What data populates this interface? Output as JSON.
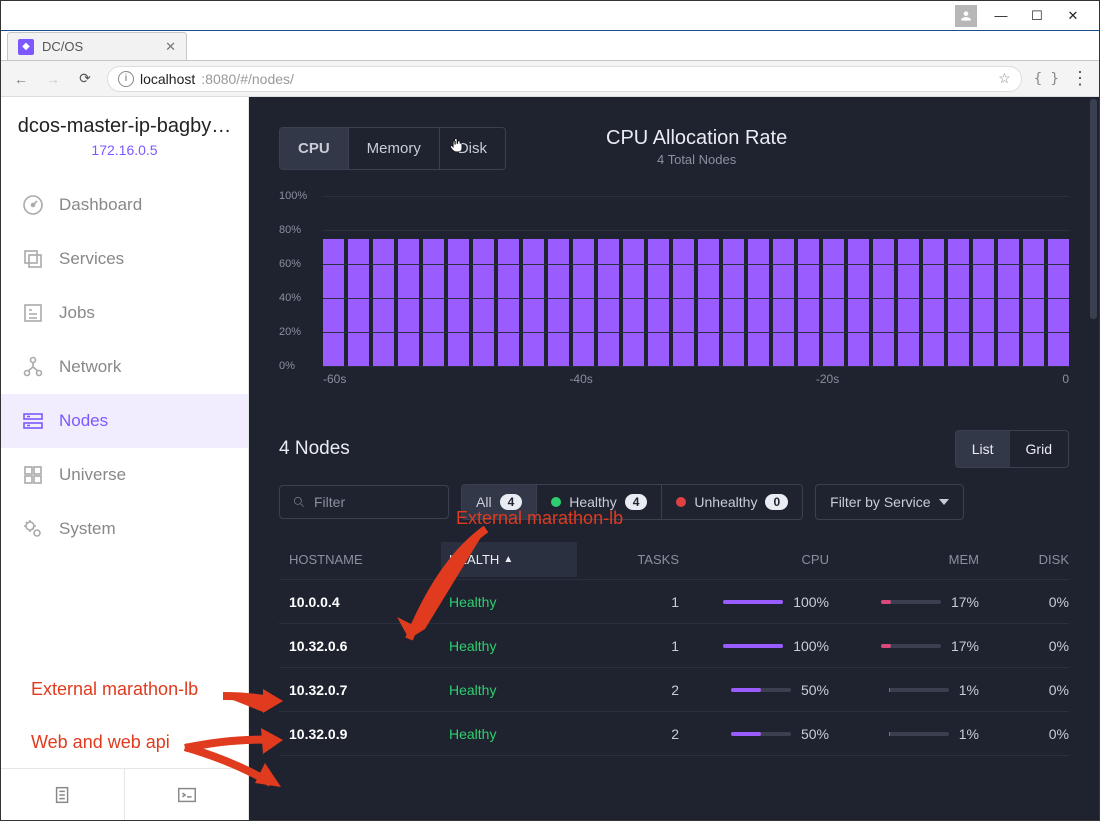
{
  "window": {
    "tab_title": "DC/OS",
    "url_host": "localhost",
    "url_rest": ":8080/#/nodes/"
  },
  "sidebar": {
    "cluster_name": "dcos-master-ip-bagby…",
    "cluster_ip": "172.16.0.5",
    "items": [
      {
        "label": "Dashboard"
      },
      {
        "label": "Services"
      },
      {
        "label": "Jobs"
      },
      {
        "label": "Network"
      },
      {
        "label": "Nodes"
      },
      {
        "label": "Universe"
      },
      {
        "label": "System"
      }
    ]
  },
  "tabs": {
    "cpu": "CPU",
    "memory": "Memory",
    "disk": "Disk"
  },
  "chart": {
    "title": "CPU Allocation Rate",
    "subtitle": "4 Total Nodes",
    "ylabels": [
      "100%",
      "80%",
      "60%",
      "40%",
      "20%",
      "0%"
    ],
    "xlabels": [
      "-60s",
      "-40s",
      "-20s",
      "0"
    ],
    "bar_pct": 75,
    "bar_count": 30,
    "bar_color": "#9b5cff",
    "grid_color": "#2b3040"
  },
  "nodes": {
    "heading": "4 Nodes",
    "view_list": "List",
    "view_grid": "Grid",
    "filter_placeholder": "Filter",
    "health_filters": {
      "all": {
        "label": "All",
        "count": "4"
      },
      "healthy": {
        "label": "Healthy",
        "count": "4",
        "dot": "#2fcf6f"
      },
      "unhealthy": {
        "label": "Unhealthy",
        "count": "0",
        "dot": "#e04040"
      }
    },
    "filter_service_label": "Filter by Service",
    "columns": {
      "hostname": "HOSTNAME",
      "health": "HEALTH",
      "tasks": "TASKS",
      "cpu": "CPU",
      "mem": "MEM",
      "disk": "DISK"
    },
    "rows": [
      {
        "host": "10.0.0.4",
        "health": "Healthy",
        "tasks": "1",
        "cpu_pct": 100,
        "cpu_label": "100%",
        "cpu_color": "#9b5cff",
        "mem_pct": 17,
        "mem_label": "17%",
        "mem_color": "#d94a7a",
        "disk_pct": 0,
        "disk_label": "0%"
      },
      {
        "host": "10.32.0.6",
        "health": "Healthy",
        "tasks": "1",
        "cpu_pct": 100,
        "cpu_label": "100%",
        "cpu_color": "#9b5cff",
        "mem_pct": 17,
        "mem_label": "17%",
        "mem_color": "#d94a7a",
        "disk_pct": 0,
        "disk_label": "0%"
      },
      {
        "host": "10.32.0.7",
        "health": "Healthy",
        "tasks": "2",
        "cpu_pct": 50,
        "cpu_label": "50%",
        "cpu_color": "#9b5cff",
        "mem_pct": 1,
        "mem_label": "1%",
        "mem_color": "#d94a7a",
        "disk_pct": 0,
        "disk_label": "0%"
      },
      {
        "host": "10.32.0.9",
        "health": "Healthy",
        "tasks": "2",
        "cpu_pct": 50,
        "cpu_label": "50%",
        "cpu_color": "#9b5cff",
        "mem_pct": 1,
        "mem_label": "1%",
        "mem_color": "#d94a7a",
        "disk_pct": 0,
        "disk_label": "0%"
      }
    ]
  },
  "annotations": {
    "top": "External marathon-lb",
    "side1": "External marathon-lb",
    "side2": "Web and web api"
  },
  "colors": {
    "bg_main": "#1e232f",
    "accent": "#7d58ff",
    "healthy": "#2fcf6f",
    "unhealthy": "#e04040",
    "annotation": "#e03a1f"
  }
}
